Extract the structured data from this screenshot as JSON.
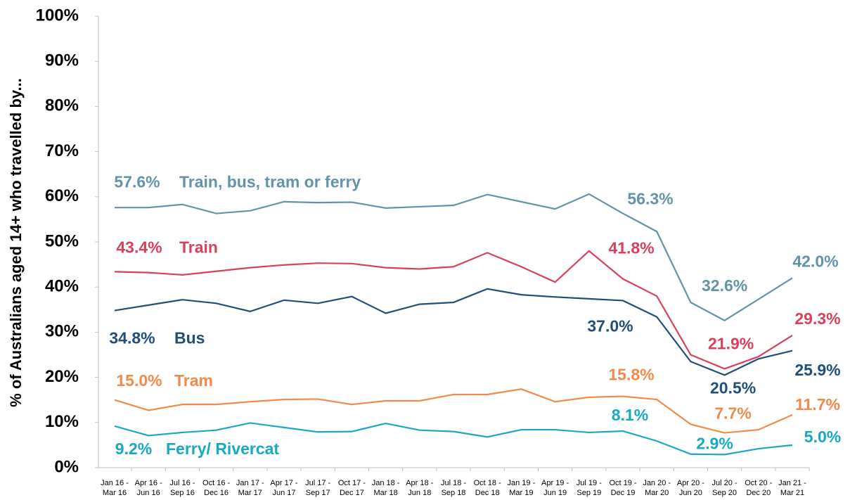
{
  "chart_data": {
    "type": "line",
    "y_axis_label": "% of Australians aged 14+ who travelled by...",
    "categories": [
      "Jan 16 - Mar 16",
      "Apr 16 - Jun 16",
      "Jul 16 - Sep 16",
      "Oct 16 - Dec 16",
      "Jan 17 - Mar 17",
      "Apr 17 - Jun 17",
      "Jul 17 - Sep 17",
      "Oct 17 - Dec 17",
      "Jan 18 - Mar 18",
      "Apr 18 - Jun 18",
      "Jul 18 - Sep 18",
      "Oct 18 - Dec 18",
      "Jan 19 - Mar 19",
      "Apr 19 - Jun 19",
      "Jul 19 - Sep 19",
      "Oct 19 - Dec 19",
      "Jan 20 - Mar 20",
      "Apr 20 - Jun 20",
      "Jul 20 - Sep 20",
      "Oct 20 - Dec 20",
      "Jan 21 - Mar 21"
    ],
    "series": [
      {
        "name": "Train, bus, tram or ferry",
        "color": "#6393a7",
        "values": [
          57.6,
          57.6,
          58.3,
          56.3,
          56.9,
          58.9,
          58.7,
          58.8,
          57.5,
          57.8,
          58.1,
          60.5,
          58.9,
          57.3,
          60.6,
          56.3,
          52.3,
          36.6,
          32.6,
          37.3,
          42.0
        ],
        "value_labels": [
          "57.6%",
          null,
          null,
          null,
          null,
          null,
          null,
          null,
          null,
          null,
          null,
          null,
          null,
          null,
          null,
          "56.3%",
          null,
          null,
          "32.6%",
          null,
          "42.0%"
        ]
      },
      {
        "name": "Train",
        "color": "#d9415a",
        "values": [
          43.4,
          43.2,
          42.7,
          43.5,
          44.3,
          44.9,
          45.3,
          45.2,
          44.3,
          44.0,
          44.5,
          47.6,
          44.5,
          41.1,
          48.0,
          41.8,
          38.0,
          25.0,
          21.9,
          24.6,
          29.3
        ],
        "value_labels": [
          "43.4%",
          null,
          null,
          null,
          null,
          null,
          null,
          null,
          null,
          null,
          null,
          null,
          null,
          null,
          null,
          "41.8%",
          null,
          null,
          "21.9%",
          null,
          "29.3%"
        ]
      },
      {
        "name": "Bus",
        "color": "#1f4e79",
        "values": [
          34.8,
          36.0,
          37.2,
          36.4,
          34.6,
          37.1,
          36.4,
          37.9,
          34.2,
          36.2,
          36.6,
          39.6,
          38.3,
          37.8,
          37.4,
          37.0,
          33.4,
          23.5,
          20.5,
          24.1,
          25.9
        ],
        "value_labels": [
          "34.8%",
          null,
          null,
          null,
          null,
          null,
          null,
          null,
          null,
          null,
          null,
          null,
          null,
          null,
          null,
          "37.0%",
          null,
          null,
          "20.5%",
          null,
          "25.9%"
        ]
      },
      {
        "name": "Tram",
        "color": "#f28a4a",
        "values": [
          15.0,
          12.7,
          14.0,
          14.0,
          14.6,
          15.1,
          15.2,
          14.0,
          14.8,
          14.8,
          16.2,
          16.2,
          17.4,
          14.6,
          15.6,
          15.8,
          15.1,
          9.6,
          7.7,
          8.4,
          11.7
        ],
        "value_labels": [
          "15.0%",
          null,
          null,
          null,
          null,
          null,
          null,
          null,
          null,
          null,
          null,
          null,
          null,
          null,
          null,
          "15.8%",
          null,
          null,
          "7.7%",
          null,
          "11.7%"
        ]
      },
      {
        "name": "Ferry/ Rivercat",
        "color": "#17a9c3",
        "values": [
          9.2,
          7.1,
          7.8,
          8.3,
          9.9,
          8.9,
          7.9,
          8.0,
          9.8,
          8.3,
          8.0,
          6.8,
          8.4,
          8.4,
          7.8,
          8.1,
          5.9,
          3.0,
          2.9,
          4.2,
          5.0
        ],
        "value_labels": [
          "9.2%",
          null,
          null,
          null,
          null,
          null,
          null,
          null,
          null,
          null,
          null,
          null,
          null,
          null,
          null,
          "8.1%",
          null,
          null,
          "2.9%",
          null,
          "5.0%"
        ]
      }
    ],
    "ylim": [
      0,
      100
    ],
    "yticks": [
      {
        "value": 0,
        "label": "0%"
      },
      {
        "value": 10,
        "label": "10%"
      },
      {
        "value": 20,
        "label": "20%"
      },
      {
        "value": 30,
        "label": "30%"
      },
      {
        "value": 40,
        "label": "40%"
      },
      {
        "value": 50,
        "label": "50%"
      },
      {
        "value": 60,
        "label": "60%"
      },
      {
        "value": 70,
        "label": "70%"
      },
      {
        "value": 80,
        "label": "80%"
      },
      {
        "value": 90,
        "label": "90%"
      },
      {
        "value": 100,
        "label": "100%"
      }
    ],
    "grid": false
  }
}
